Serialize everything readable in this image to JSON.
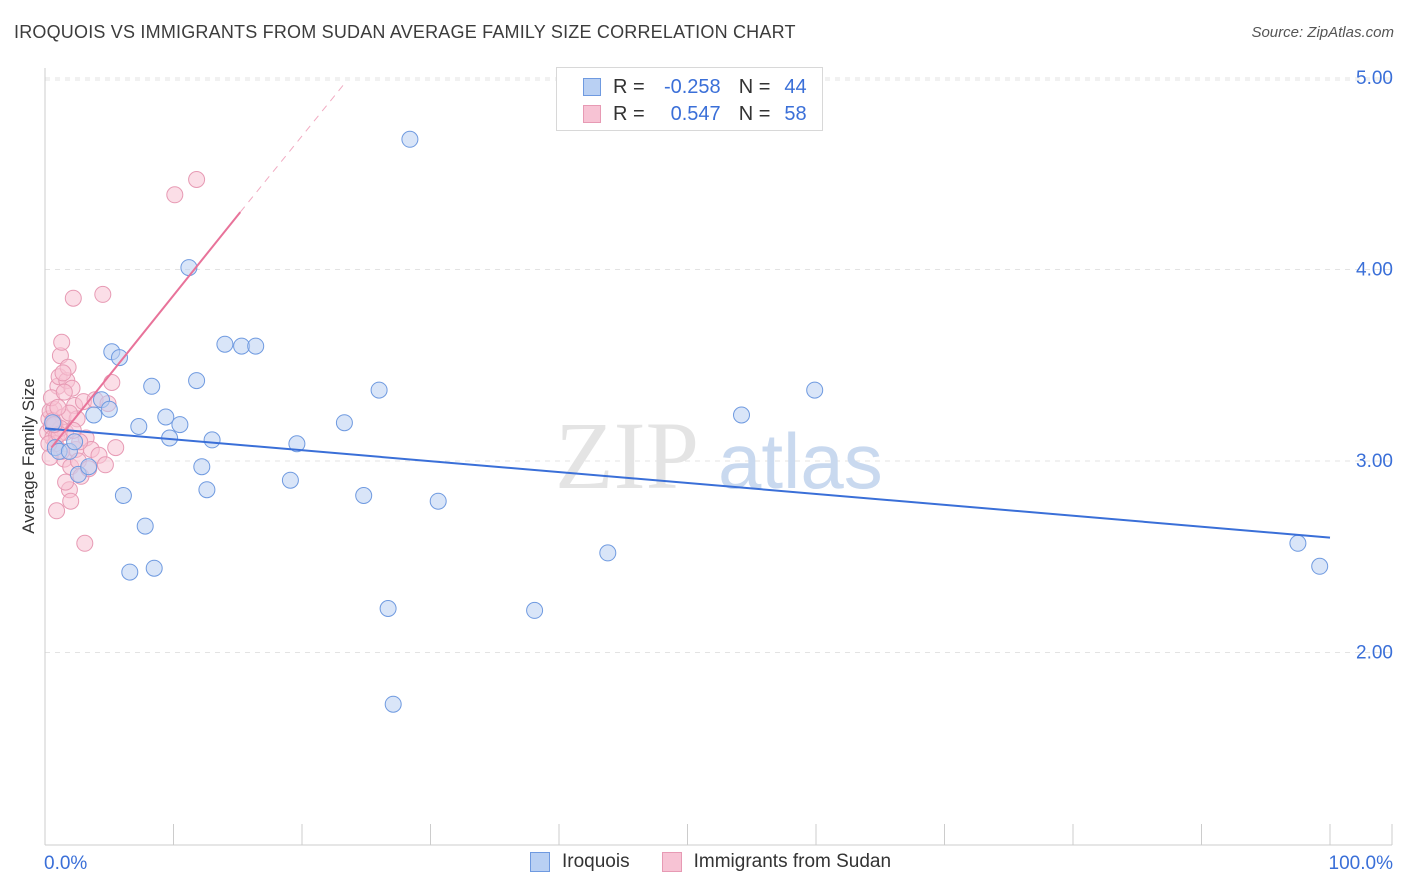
{
  "title": "IROQUOIS VS IMMIGRANTS FROM SUDAN AVERAGE FAMILY SIZE CORRELATION CHART",
  "source": "Source: ZipAtlas.com",
  "colors": {
    "blue": "#3a6fd8",
    "blue_fill": "#b9d0f3",
    "pink": "#e8739a",
    "pink_fill": "#f7c3d4",
    "grid": "#e3e3e3"
  },
  "legend_top": {
    "rows": [
      {
        "r_label": "R =",
        "r_value": "-0.258",
        "n_label": "N =",
        "n_value": "44"
      },
      {
        "r_label": "R =",
        "r_value": "0.547",
        "n_label": "N =",
        "n_value": "58"
      }
    ]
  },
  "legend_bottom": [
    "Iroquois",
    "Immigrants from Sudan"
  ],
  "watermark": {
    "zip": "ZIP",
    "atlas": "atlas"
  },
  "chart_data": {
    "type": "scatter",
    "title": "IROQUOIS VS IMMIGRANTS FROM SUDAN AVERAGE FAMILY SIZE CORRELATION CHART",
    "xlabel": "",
    "ylabel": "Average Family Size",
    "xlim": [
      0,
      100
    ],
    "ylim": [
      1.0,
      5.05
    ],
    "x_tick_labels": [
      "0.0%",
      "100.0%"
    ],
    "y_ticks": [
      2.0,
      3.0,
      4.0,
      5.0
    ],
    "y_tick_labels": [
      "2.00",
      "3.00",
      "4.00",
      "5.00"
    ],
    "series": [
      {
        "name": "Iroquois",
        "color": "blue",
        "points": [
          [
            0.8,
            3.07
          ],
          [
            1.1,
            3.05
          ],
          [
            1.9,
            3.05
          ],
          [
            2.6,
            2.93
          ],
          [
            3.4,
            2.97
          ],
          [
            3.8,
            3.24
          ],
          [
            4.4,
            3.32
          ],
          [
            5.0,
            3.27
          ],
          [
            5.2,
            3.57
          ],
          [
            5.8,
            3.54
          ],
          [
            6.1,
            2.82
          ],
          [
            6.6,
            2.42
          ],
          [
            7.3,
            3.18
          ],
          [
            7.8,
            2.66
          ],
          [
            8.3,
            3.39
          ],
          [
            8.5,
            2.44
          ],
          [
            9.4,
            3.23
          ],
          [
            9.7,
            3.12
          ],
          [
            10.5,
            3.19
          ],
          [
            11.2,
            4.01
          ],
          [
            11.8,
            3.42
          ],
          [
            12.2,
            2.97
          ],
          [
            12.6,
            2.85
          ],
          [
            13.0,
            3.11
          ],
          [
            14.0,
            3.61
          ],
          [
            15.3,
            3.6
          ],
          [
            16.4,
            3.6
          ],
          [
            19.1,
            2.9
          ],
          [
            19.6,
            3.09
          ],
          [
            23.3,
            3.2
          ],
          [
            24.8,
            2.82
          ],
          [
            26.0,
            3.37
          ],
          [
            26.7,
            2.23
          ],
          [
            27.1,
            1.73
          ],
          [
            28.4,
            4.68
          ],
          [
            30.6,
            2.79
          ],
          [
            38.1,
            2.22
          ],
          [
            43.8,
            2.52
          ],
          [
            54.2,
            3.24
          ],
          [
            59.9,
            3.37
          ],
          [
            97.5,
            2.57
          ],
          [
            99.2,
            2.45
          ],
          [
            0.6,
            3.2
          ],
          [
            2.3,
            3.1
          ]
        ]
      },
      {
        "name": "Immigrants from Sudan",
        "color": "pink",
        "points": [
          [
            0.2,
            3.15
          ],
          [
            0.3,
            3.22
          ],
          [
            0.4,
            3.26
          ],
          [
            0.5,
            3.18
          ],
          [
            0.6,
            3.12
          ],
          [
            0.7,
            3.27
          ],
          [
            0.8,
            3.19
          ],
          [
            0.9,
            3.13
          ],
          [
            1.0,
            3.39
          ],
          [
            1.1,
            3.44
          ],
          [
            1.2,
            3.55
          ],
          [
            1.3,
            3.62
          ],
          [
            1.4,
            3.23
          ],
          [
            1.5,
            3.01
          ],
          [
            1.6,
            3.15
          ],
          [
            1.7,
            3.42
          ],
          [
            1.8,
            3.49
          ],
          [
            1.9,
            2.85
          ],
          [
            2.0,
            2.97
          ],
          [
            2.1,
            3.38
          ],
          [
            2.2,
            3.85
          ],
          [
            2.3,
            3.29
          ],
          [
            2.4,
            3.06
          ],
          [
            2.5,
            3.22
          ],
          [
            2.6,
            3.0
          ],
          [
            2.8,
            2.92
          ],
          [
            3.0,
            3.31
          ],
          [
            3.2,
            3.12
          ],
          [
            3.4,
            2.96
          ],
          [
            3.6,
            3.06
          ],
          [
            3.9,
            3.32
          ],
          [
            4.2,
            3.03
          ],
          [
            4.5,
            3.87
          ],
          [
            4.7,
            2.98
          ],
          [
            4.9,
            3.3
          ],
          [
            5.2,
            3.41
          ],
          [
            5.5,
            3.07
          ],
          [
            10.1,
            4.39
          ],
          [
            11.8,
            4.47
          ],
          [
            0.9,
            2.74
          ],
          [
            1.3,
            3.05
          ],
          [
            1.6,
            2.89
          ],
          [
            2.0,
            2.79
          ],
          [
            3.1,
            2.57
          ],
          [
            0.5,
            3.33
          ],
          [
            0.8,
            3.09
          ],
          [
            1.2,
            3.17
          ],
          [
            1.5,
            3.36
          ],
          [
            0.3,
            3.09
          ],
          [
            0.6,
            3.21
          ],
          [
            1.1,
            3.14
          ],
          [
            1.9,
            3.25
          ],
          [
            2.7,
            3.1
          ],
          [
            0.4,
            3.02
          ],
          [
            1.0,
            3.28
          ],
          [
            1.4,
            3.46
          ],
          [
            2.2,
            3.16
          ],
          [
            0.7,
            3.19
          ]
        ]
      }
    ],
    "trendlines": [
      {
        "series": "Iroquois",
        "x": [
          0,
          100
        ],
        "y": [
          3.17,
          2.6
        ],
        "style": "solid"
      },
      {
        "series": "Immigrants from Sudan",
        "x": [
          0.5,
          15.2
        ],
        "y": [
          3.07,
          4.3
        ],
        "style": "solid"
      },
      {
        "series": "Immigrants from Sudan",
        "x": [
          15.2,
          23.3
        ],
        "y": [
          4.3,
          4.97
        ],
        "style": "dashed"
      }
    ]
  }
}
